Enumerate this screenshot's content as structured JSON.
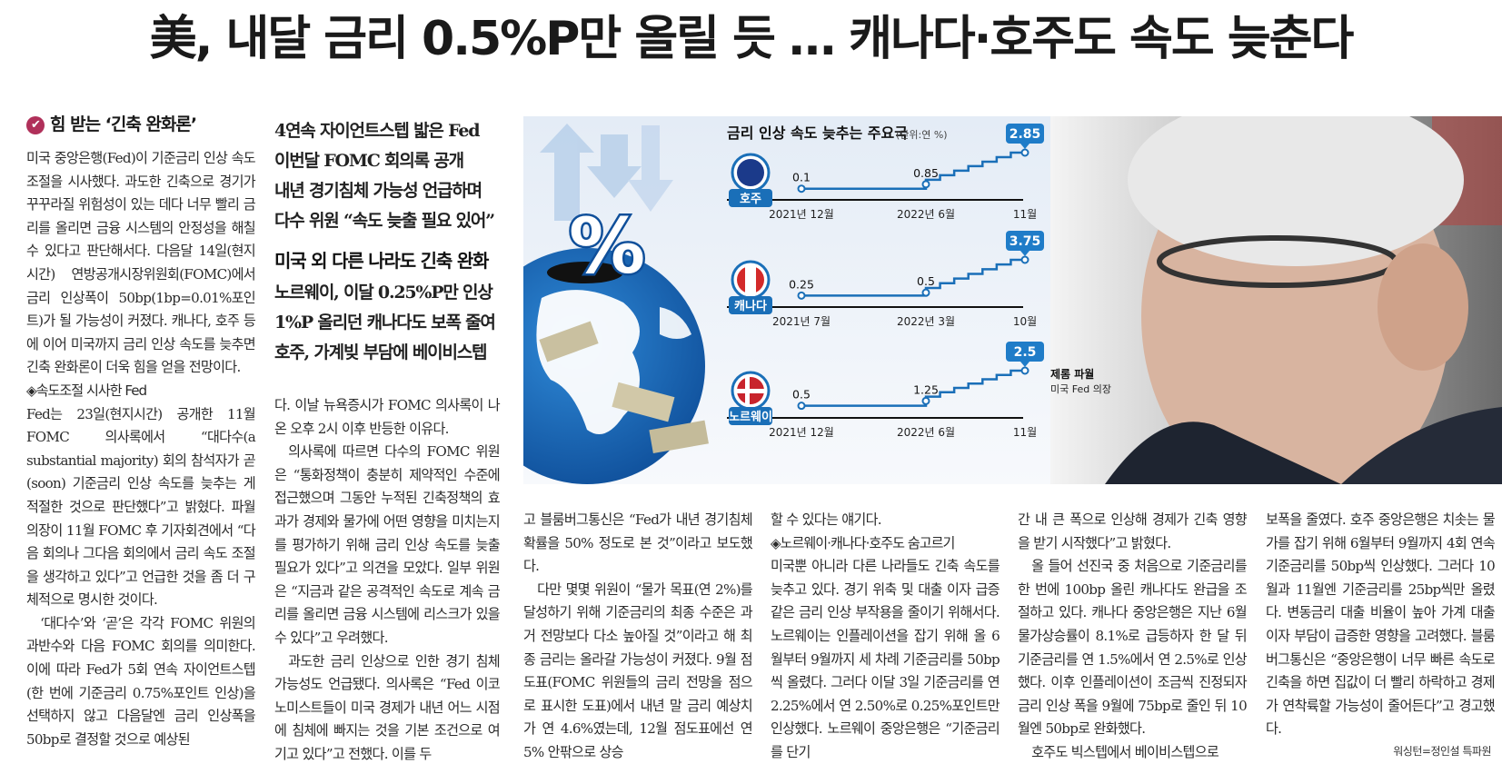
{
  "headline": "美, 내달 금리 0.5%P만 올릴 듯 … 캐나다·호주도 속도 늦춘다",
  "decks": [
    "4연속 자이언트스텝 밟은 Fed",
    "이번달 FOMC 회의록 공개",
    "내년 경기침체 가능성 언급하며",
    "다수 위원 “속도 늦출 필요 있어”"
  ],
  "deck_head": "미국 외 다른 나라도 긴축 완화",
  "decks2": [
    "노르웨이, 이달 0.25%P만 인상",
    "1%P 올리던 캐나다도 보폭 줄여",
    "호주, 가계빚 부담에 베이비스텝"
  ],
  "section_head": "힘 받는 ‘긴축 완화론’",
  "columns": {
    "c1": [
      {
        "text": "미국 중앙은행(Fed)이 기준금리 인상 속도 조절을 시사했다. 과도한 긴축으로 경기가 꾸꾸라질 위험성이 있는 데다 너무 빨리 금리를 올리면 금융 시스템의 안정성을 해칠 수 있다고 판단해서다. 다음달 14일(현지시간) 연방공개시장위원회(FOMC)에서 금리 인상폭이 50bp(1bp=0.01%포인트)가 될 가능성이 커졌다. 캐나다, 호주 등에 이어 미국까지 금리 인상 속도를 늦추면 긴축 완화론이 더욱 힘을 얻을 전망이다.",
        "cls": ""
      },
      {
        "text": "◈속도조절 시사한 Fed",
        "cls": "sub"
      },
      {
        "text": "Fed는 23일(현지시간) 공개한 11월 FOMC 의사록에서 “대다수(a substantial majority) 회의 참석자가 곧(soon) 기준금리 인상 속도를 늦추는 게 적절한 것으로 판단했다”고 밝혔다. 파월 의장이 11월 FOMC 후 기자회견에서 “다음 회의나 그다음 회의에서 금리 속도 조절을 생각하고 있다”고 언급한 것을 좀 더 구체적으로 명시한 것이다.",
        "cls": ""
      },
      {
        "text": "‘대다수’와 ‘곧’은 각각 FOMC 위원의 과반수와 다음 FOMC 회의를 의미한다. 이에 따라 Fed가 5회 연속 자이언트스텝(한 번에 기준금리 0.75%포인트 인상)을 선택하지 않고 다음달엔 금리 인상폭을 50bp로 결정할 것으로 예상된",
        "cls": "indent"
      }
    ],
    "c2": [
      {
        "text": "다. 이날 뉴욕증시가 FOMC 의사록이 나온 오후 2시 이후 반등한 이유다.",
        "cls": ""
      },
      {
        "text": "의사록에 따르면 다수의 FOMC 위원은 “통화정책이 충분히 제약적인 수준에 접근했으며 그동안 누적된 긴축정책의 효과가 경제와 물가에 어떤 영향을 미치는지를 평가하기 위해 금리 인상 속도를 늦출 필요가 있다”고 의견을 모았다. 일부 위원은 “지금과 같은 공격적인 속도로 계속 금리를 올리면 금융 시스템에 리스크가 있을 수 있다”고 우려했다.",
        "cls": "indent"
      },
      {
        "text": "과도한 금리 인상으로 인한 경기 침체 가능성도 언급됐다. 의사록은 “Fed 이코노미스트들이 미국 경제가 내년 어느 시점에 침체에 빠지는 것을 기본 조건으로 여기고 있다”고 전했다. 이를 두",
        "cls": "indent"
      }
    ],
    "c3": [
      {
        "text": "고 블룸버그통신은 “Fed가 내년 경기침체 확률을 50% 정도로 본 것”이라고 보도했다.",
        "cls": ""
      },
      {
        "text": "다만 몇몇 위원이 “물가 목표(연 2%)를 달성하기 위해 기준금리의 최종 수준은 과거 전망보다 다소 높아질 것”이라고 해 최종 금리는 올라갈 가능성이 커졌다. 9월 점도표(FOMC 위원들의 금리 전망을 점으로 표시한 도표)에서 내년 말 금리 예상치가 연 4.6%였는데, 12월 점도표에선 연 5% 안팎으로 상승",
        "cls": "indent"
      }
    ],
    "c4": [
      {
        "text": "할 수 있다는 얘기다.",
        "cls": ""
      },
      {
        "text": "◈노르웨이·캐나다·호주도 숨고르기",
        "cls": "sub"
      },
      {
        "text": "미국뿐 아니라 다른 나라들도 긴축 속도를 늦추고 있다. 경기 위축 및 대출 이자 급증 같은 금리 인상 부작용을 줄이기 위해서다. 노르웨이는 인플레이션을 잡기 위해 올 6월부터 9월까지 세 차례 기준금리를 50bp씩 올렸다. 그러다 이달 3일 기준금리를 연 2.25%에서 연 2.50%로 0.25%포인트만 인상했다. 노르웨이 중앙은행은 “기준금리를 단기",
        "cls": ""
      }
    ],
    "c5": [
      {
        "text": "간 내 큰 폭으로 인상해 경제가 긴축 영향을 받기 시작했다”고 밝혔다.",
        "cls": ""
      },
      {
        "text": "올 들어 선진국 중 처음으로 기준금리를 한 번에 100bp 올린 캐나다도 완급을 조절하고 있다. 캐나다 중앙은행은 지난 6월 물가상승률이 8.1%로 급등하자 한 달 뒤 기준금리를 연 1.5%에서 연 2.5%로 인상했다. 이후 인플레이션이 조금씩 진정되자 금리 인상 폭을 9월에 75bp로 줄인 뒤 10월엔 50bp로 완화했다.",
        "cls": "indent"
      },
      {
        "text": "호주도 빅스텝에서 베이비스텝으로",
        "cls": "indent"
      }
    ],
    "c6": [
      {
        "text": "보폭을 줄였다. 호주 중앙은행은 치솟는 물가를 잡기 위해 6월부터 9월까지 4회 연속 기준금리를 50bp씩 인상했다. 그러다 10월과 11월엔 기준금리를 25bp씩만 올렸다. 변동금리 대출 비율이 높아 가계 대출이자 부담이 급증한 영향을 고려했다. 블룸버그통신은 “중앙은행이 너무 빠른 속도로 긴축을 하면 집값이 더 빨리 하락하고 경제가 연착륙할 가능성이 줄어든다”고 경고했다.",
        "cls": ""
      }
    ]
  },
  "credit": "워싱턴=정인설 특파원",
  "graphic": {
    "chart_title": "금리 인상 속도 늦추는 주요국",
    "unit": "(단위:연 %)",
    "photo_caption_name": "제롬 파월",
    "photo_caption_role": "미국 Fed 의장",
    "accent": "#1a6fb8",
    "bubble": "#1f7cc8"
  },
  "chart_data": [
    {
      "type": "line",
      "title": "금리 인상 속도 늦추는 주요국",
      "series": [
        {
          "name": "호주",
          "values": [
            0.1,
            0.85,
            2.85
          ]
        }
      ],
      "categories": [
        "2021년 12월",
        "2022년 6월",
        "11월"
      ]
    },
    {
      "type": "line",
      "series": [
        {
          "name": "캐나다",
          "values": [
            0.25,
            0.5,
            3.75
          ]
        }
      ],
      "categories": [
        "2021년 7월",
        "2022년 3월",
        "10월"
      ]
    },
    {
      "type": "line",
      "series": [
        {
          "name": "노르웨이",
          "values": [
            0.5,
            1.25,
            2.5
          ]
        }
      ],
      "categories": [
        "2021년 12월",
        "2022년 6월",
        "11월"
      ]
    }
  ]
}
